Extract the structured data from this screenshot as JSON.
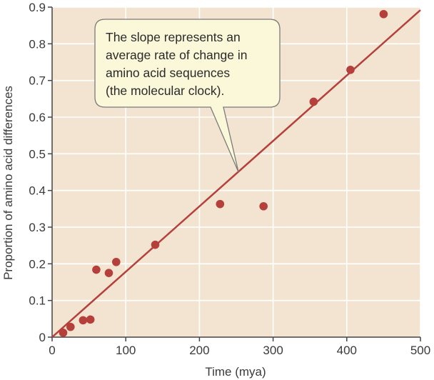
{
  "chart_data": {
    "type": "scatter",
    "title": "",
    "xlabel": "Time (mya)",
    "ylabel": "Proportion of amino acid differences",
    "xlim": [
      0,
      500
    ],
    "ylim": [
      0,
      0.9
    ],
    "xticks": [
      0,
      100,
      200,
      300,
      400,
      500
    ],
    "yticks": [
      0,
      0.1,
      0.2,
      0.3,
      0.4,
      0.5,
      0.6,
      0.7,
      0.8,
      0.9
    ],
    "xtick_labels": [
      "0",
      "100",
      "200",
      "300",
      "400",
      "500"
    ],
    "ytick_labels": [
      "0",
      "0.1",
      "0.2",
      "0.3",
      "0.4",
      "0.5",
      "0.6",
      "0.7",
      "0.8",
      "0.9"
    ],
    "grid": true,
    "points": [
      {
        "x": 15,
        "y": 0.012
      },
      {
        "x": 25,
        "y": 0.028
      },
      {
        "x": 42,
        "y": 0.046
      },
      {
        "x": 52,
        "y": 0.048
      },
      {
        "x": 60,
        "y": 0.184
      },
      {
        "x": 77,
        "y": 0.175
      },
      {
        "x": 87,
        "y": 0.205
      },
      {
        "x": 140,
        "y": 0.252
      },
      {
        "x": 228,
        "y": 0.363
      },
      {
        "x": 287,
        "y": 0.357
      },
      {
        "x": 355,
        "y": 0.642
      },
      {
        "x": 405,
        "y": 0.729
      },
      {
        "x": 450,
        "y": 0.881
      }
    ],
    "trendline": {
      "x": [
        0,
        500
      ],
      "y": [
        0,
        0.892
      ]
    },
    "annotation": {
      "lines": [
        "The slope represents an",
        "average rate of change in",
        "amino acid sequences",
        "(the molecular clock)."
      ],
      "pointer_target": {
        "x": 253,
        "y": 0.45
      }
    },
    "colors": {
      "plot_background": "#f2e4d0",
      "grid": "#ffffff",
      "points": "#b5403b",
      "trendline": "#b5403b",
      "callout_fill": "#fbf8d9",
      "callout_stroke": "#7a7a7a",
      "axis": "#444444"
    }
  }
}
